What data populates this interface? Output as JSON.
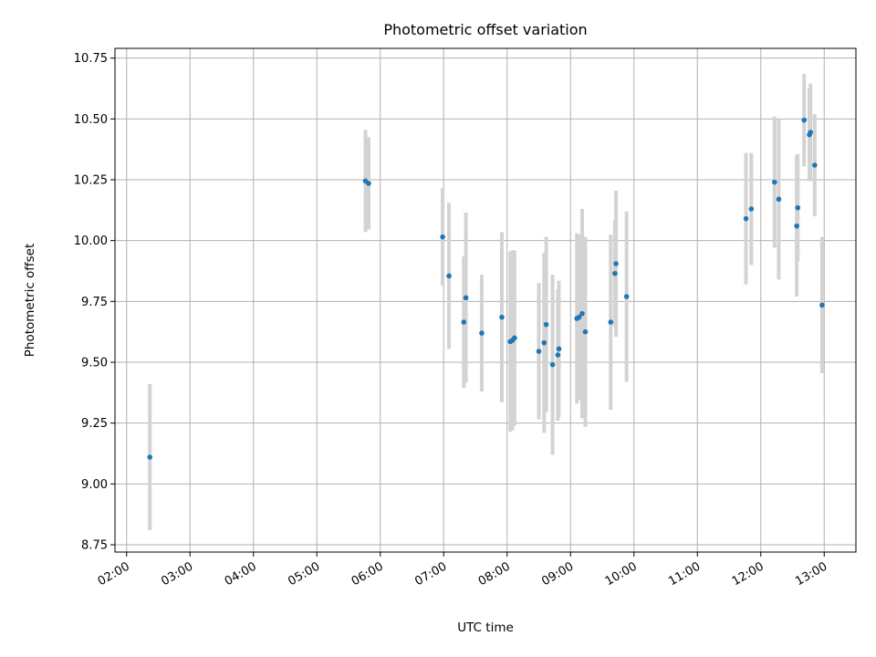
{
  "chart_data": {
    "type": "scatter",
    "title": "Photometric offset variation",
    "xlabel": "UTC time",
    "ylabel": "Photometric offset",
    "x_ticks": [
      "02:00",
      "03:00",
      "04:00",
      "05:00",
      "06:00",
      "07:00",
      "08:00",
      "09:00",
      "10:00",
      "11:00",
      "12:00",
      "13:00"
    ],
    "y_ticks": [
      "8.75",
      "9.00",
      "9.25",
      "9.50",
      "9.75",
      "10.00",
      "10.25",
      "10.50",
      "10.75"
    ],
    "xlim": [
      "01:49",
      "13:30"
    ],
    "ylim": [
      8.72,
      10.79
    ],
    "grid": true,
    "colors": {
      "point": "#1f77b4",
      "errorbar": "#d3d3d3"
    },
    "series": [
      {
        "points": [
          {
            "t": "02:22",
            "y": 9.11,
            "err": 0.3
          },
          {
            "t": "05:46",
            "y": 10.245,
            "err": 0.21
          },
          {
            "t": "05:49",
            "y": 10.235,
            "err": 0.19
          },
          {
            "t": "06:59",
            "y": 10.015,
            "err": 0.2
          },
          {
            "t": "07:05",
            "y": 9.855,
            "err": 0.3
          },
          {
            "t": "07:19",
            "y": 9.665,
            "err": 0.27
          },
          {
            "t": "07:21",
            "y": 9.765,
            "err": 0.35
          },
          {
            "t": "07:36",
            "y": 9.62,
            "err": 0.24
          },
          {
            "t": "07:55",
            "y": 9.685,
            "err": 0.35
          },
          {
            "t": "08:03",
            "y": 9.585,
            "err": 0.37
          },
          {
            "t": "08:05",
            "y": 9.59,
            "err": 0.37
          },
          {
            "t": "08:07",
            "y": 9.6,
            "err": 0.36
          },
          {
            "t": "08:30",
            "y": 9.545,
            "err": 0.28
          },
          {
            "t": "08:35",
            "y": 9.58,
            "err": 0.37
          },
          {
            "t": "08:37",
            "y": 9.655,
            "err": 0.36
          },
          {
            "t": "08:43",
            "y": 9.49,
            "err": 0.37
          },
          {
            "t": "08:48",
            "y": 9.53,
            "err": 0.27
          },
          {
            "t": "08:49",
            "y": 9.555,
            "err": 0.28
          },
          {
            "t": "09:06",
            "y": 9.68,
            "err": 0.35
          },
          {
            "t": "09:08",
            "y": 9.685,
            "err": 0.34
          },
          {
            "t": "09:11",
            "y": 9.7,
            "err": 0.43
          },
          {
            "t": "09:14",
            "y": 9.625,
            "err": 0.39
          },
          {
            "t": "09:38",
            "y": 9.665,
            "err": 0.36
          },
          {
            "t": "09:42",
            "y": 9.865,
            "err": 0.22
          },
          {
            "t": "09:43",
            "y": 9.905,
            "err": 0.3
          },
          {
            "t": "09:53",
            "y": 9.77,
            "err": 0.35
          },
          {
            "t": "11:46",
            "y": 10.09,
            "err": 0.27
          },
          {
            "t": "11:51",
            "y": 10.13,
            "err": 0.23
          },
          {
            "t": "12:13",
            "y": 10.24,
            "err": 0.27
          },
          {
            "t": "12:17",
            "y": 10.17,
            "err": 0.33
          },
          {
            "t": "12:34",
            "y": 10.06,
            "err": 0.29
          },
          {
            "t": "12:35",
            "y": 10.135,
            "err": 0.22
          },
          {
            "t": "12:41",
            "y": 10.495,
            "err": 0.19
          },
          {
            "t": "12:46",
            "y": 10.435,
            "err": 0.19
          },
          {
            "t": "12:47",
            "y": 10.445,
            "err": 0.2
          },
          {
            "t": "12:51",
            "y": 10.31,
            "err": 0.21
          },
          {
            "t": "12:58",
            "y": 9.735,
            "err": 0.28
          }
        ]
      }
    ]
  }
}
